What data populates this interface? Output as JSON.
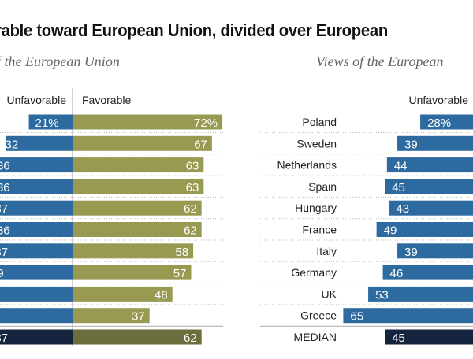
{
  "title": "rable toward European Union, divided over European",
  "chart_data": [
    {
      "type": "bar",
      "subtitle": "f the European Union",
      "orientation": "diverging-horizontal",
      "legend": [
        "Unfavorable",
        "Favorable"
      ],
      "categories": [
        "",
        "",
        "",
        "",
        "",
        "",
        "",
        "",
        "",
        "",
        ""
      ],
      "series": [
        {
          "name": "Unfavorable",
          "color": "#2d6a9f",
          "values": [
            21,
            32,
            36,
            36,
            37,
            36,
            37,
            39,
            null,
            null,
            37
          ],
          "labels": [
            "21%",
            "32",
            "36",
            "36",
            "37",
            "36",
            "37",
            "39",
            "",
            "",
            "37"
          ]
        },
        {
          "name": "Favorable",
          "color": "#999a52",
          "values": [
            72,
            67,
            63,
            63,
            62,
            62,
            58,
            57,
            48,
            37,
            62
          ],
          "labels": [
            "72%",
            "67",
            "63",
            "63",
            "62",
            "62",
            "58",
            "57",
            "48",
            "37",
            "62"
          ]
        }
      ],
      "median_colors": {
        "Unfavorable": "#14243f",
        "Favorable": "#6b6d3c"
      }
    },
    {
      "type": "bar",
      "subtitle": "Views of the European",
      "orientation": "diverging-horizontal",
      "legend": [
        "Unfavorable"
      ],
      "categories": [
        "Poland",
        "Sweden",
        "Netherlands",
        "Spain",
        "Hungary",
        "France",
        "Italy",
        "Germany",
        "UK",
        "Greece",
        "MEDIAN"
      ],
      "series": [
        {
          "name": "Unfavorable",
          "color": "#2d6a9f",
          "values": [
            28,
            39,
            44,
            45,
            43,
            49,
            39,
            46,
            53,
            65,
            45
          ],
          "labels": [
            "28%",
            "39",
            "44",
            "45",
            "43",
            "49",
            "39",
            "46",
            "53",
            "65",
            "45"
          ]
        }
      ],
      "median_colors": {
        "Unfavorable": "#14243f"
      }
    }
  ]
}
